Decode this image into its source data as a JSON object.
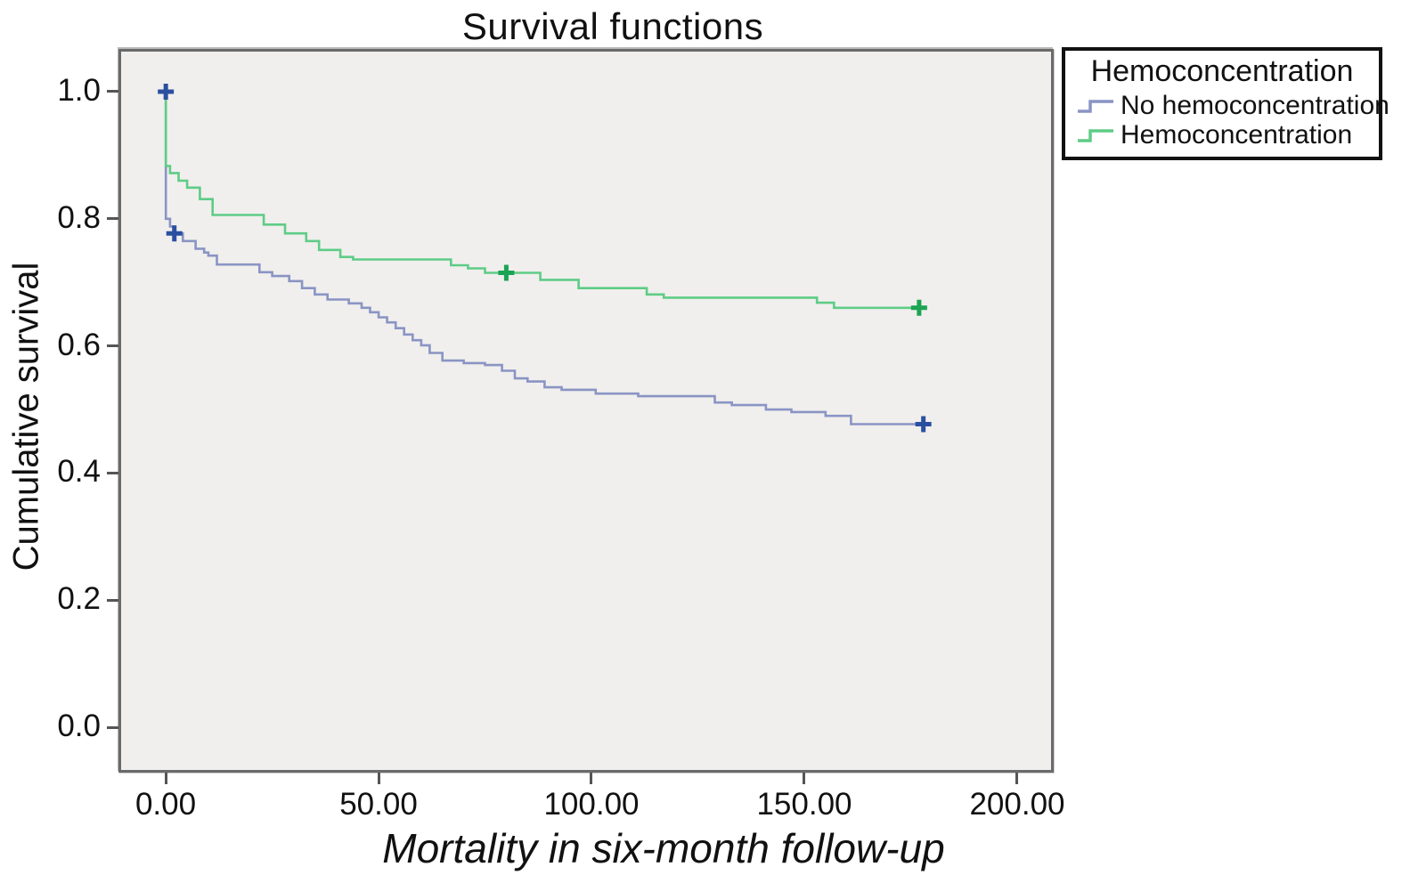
{
  "chart_data": {
    "type": "line",
    "subtype": "kaplan-meier-step",
    "title": "Survival functions",
    "xlabel": "Mortality in six-month follow-up",
    "ylabel": "Cumulative survival",
    "legend_title": "Hemoconcentration",
    "legend_position": "outside-top-right",
    "grid": false,
    "xlim": [
      -10.5,
      208
    ],
    "ylim": [
      -0.067,
      1.063
    ],
    "x_ticks": [
      0,
      50,
      100,
      150,
      200
    ],
    "x_tick_labels": [
      "0.00",
      "50.00",
      "100.00",
      "150.00",
      "200.00"
    ],
    "y_ticks": [
      1.0,
      0.8,
      0.6,
      0.4,
      0.2,
      0.0
    ],
    "y_tick_labels": [
      "1.0",
      "0.8",
      "0.6",
      "0.4",
      "0.2",
      "0.0"
    ],
    "plot_bg": "#f0efed",
    "plot_border": "#6a6a6a",
    "series": [
      {
        "id": "no-hemoconcentration",
        "name": "No hemoconcentration",
        "color": "#8a94c4",
        "marker_color": "#2b4fa0",
        "start": [
          0,
          1.0
        ],
        "steps": [
          [
            0,
            0.8
          ],
          [
            1,
            0.788
          ],
          [
            2,
            0.777
          ],
          [
            4,
            0.765
          ],
          [
            7,
            0.753
          ],
          [
            9,
            0.747
          ],
          [
            10,
            0.742
          ],
          [
            12,
            0.728
          ],
          [
            22,
            0.716
          ],
          [
            25,
            0.71
          ],
          [
            29,
            0.702
          ],
          [
            32,
            0.691
          ],
          [
            35,
            0.681
          ],
          [
            38,
            0.673
          ],
          [
            43,
            0.667
          ],
          [
            46,
            0.66
          ],
          [
            48,
            0.653
          ],
          [
            50,
            0.645
          ],
          [
            52,
            0.637
          ],
          [
            54,
            0.628
          ],
          [
            56,
            0.618
          ],
          [
            58,
            0.609
          ],
          [
            60,
            0.601
          ],
          [
            62,
            0.589
          ],
          [
            65,
            0.577
          ],
          [
            70,
            0.573
          ],
          [
            75,
            0.57
          ],
          [
            79,
            0.561
          ],
          [
            82,
            0.549
          ],
          [
            85,
            0.544
          ],
          [
            89,
            0.535
          ],
          [
            93,
            0.531
          ],
          [
            101,
            0.525
          ],
          [
            111,
            0.521
          ],
          [
            129,
            0.511
          ],
          [
            133,
            0.507
          ],
          [
            141,
            0.5
          ],
          [
            147,
            0.496
          ],
          [
            155,
            0.49
          ],
          [
            161,
            0.477
          ]
        ],
        "end_x": 178,
        "censor_marks": [
          [
            0,
            1.0
          ],
          [
            2,
            0.777
          ],
          [
            178,
            0.477
          ]
        ]
      },
      {
        "id": "hemoconcentration",
        "name": "Hemoconcentration",
        "color": "#5fcc86",
        "marker_color": "#1ca452",
        "start": [
          0,
          1.0
        ],
        "steps": [
          [
            0,
            0.883
          ],
          [
            1,
            0.872
          ],
          [
            3,
            0.86
          ],
          [
            5,
            0.849
          ],
          [
            8,
            0.831
          ],
          [
            11,
            0.806
          ],
          [
            23,
            0.791
          ],
          [
            28,
            0.777
          ],
          [
            33,
            0.765
          ],
          [
            36,
            0.751
          ],
          [
            41,
            0.74
          ],
          [
            44,
            0.736
          ],
          [
            67,
            0.727
          ],
          [
            71,
            0.722
          ],
          [
            75,
            0.715
          ],
          [
            88,
            0.704
          ],
          [
            97,
            0.691
          ],
          [
            113,
            0.681
          ],
          [
            117,
            0.676
          ],
          [
            153,
            0.668
          ],
          [
            157,
            0.66
          ]
        ],
        "end_x": 177,
        "censor_marks": [
          [
            80,
            0.715
          ],
          [
            177,
            0.66
          ]
        ]
      }
    ]
  }
}
